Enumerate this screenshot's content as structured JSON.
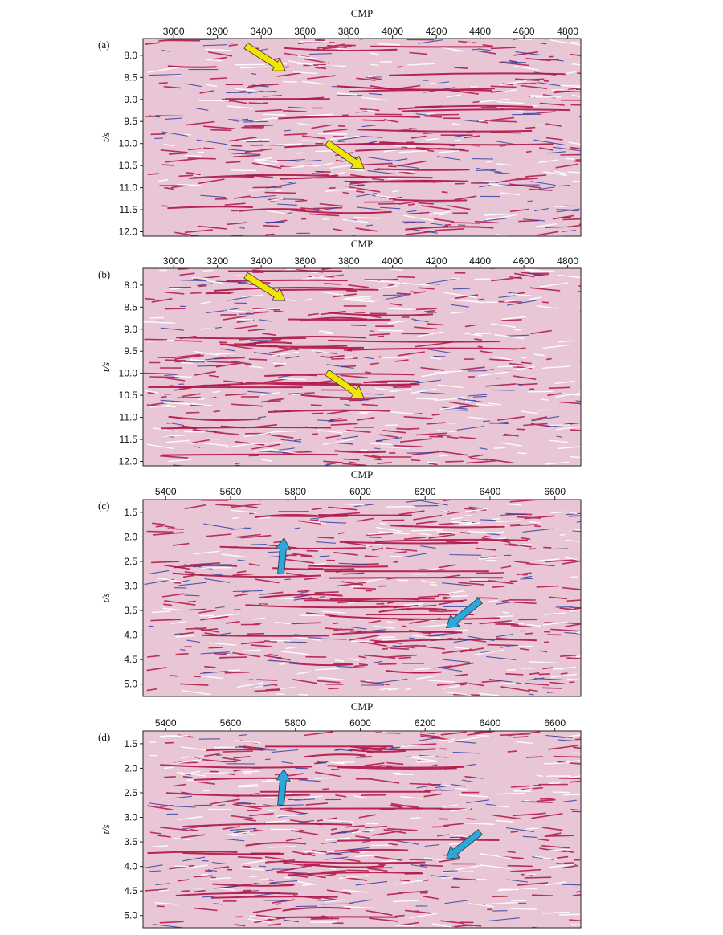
{
  "figure": {
    "panels": [
      {
        "label": "(a)",
        "xlabel": "CMP",
        "ylabel": "t/s",
        "xticks": [
          "3000",
          "3200",
          "3400",
          "3600",
          "3800",
          "4000",
          "4200",
          "4400",
          "4600",
          "4800"
        ],
        "yticks": [
          "8.0",
          "8.5",
          "9.0",
          "9.5",
          "10.0",
          "10.5",
          "11.0",
          "11.5",
          "12.0"
        ],
        "xlim": [
          2860,
          4860
        ],
        "ylim": [
          7.62,
          12.1
        ],
        "arrows": [
          {
            "color": "#f2e600",
            "tail_x": 3330,
            "tail_t": 7.78,
            "tip_x": 3510,
            "tip_t": 8.35
          },
          {
            "color": "#f2e600",
            "tail_x": 3700,
            "tail_t": 9.98,
            "tip_x": 3870,
            "tip_t": 10.57
          }
        ],
        "seed": 11
      },
      {
        "label": "(b)",
        "xlabel": "CMP",
        "ylabel": "t/s",
        "xticks": [
          "3000",
          "3200",
          "3400",
          "3600",
          "3800",
          "4000",
          "4200",
          "4400",
          "4600",
          "4800"
        ],
        "yticks": [
          "8.0",
          "8.5",
          "9.0",
          "9.5",
          "10.0",
          "10.5",
          "11.0",
          "11.5",
          "12.0"
        ],
        "xlim": [
          2860,
          4860
        ],
        "ylim": [
          7.62,
          12.1
        ],
        "arrows": [
          {
            "color": "#f2e600",
            "tail_x": 3330,
            "tail_t": 7.78,
            "tip_x": 3510,
            "tip_t": 8.35
          },
          {
            "color": "#f2e600",
            "tail_x": 3700,
            "tail_t": 9.98,
            "tip_x": 3870,
            "tip_t": 10.57
          }
        ],
        "seed": 23
      },
      {
        "label": "(c)",
        "xlabel": "CMP",
        "ylabel": "t/s",
        "xticks": [
          "5400",
          "5600",
          "5800",
          "6000",
          "6200",
          "6400",
          "6600"
        ],
        "yticks": [
          "1.5",
          "2.0",
          "2.5",
          "3.0",
          "3.5",
          "4.0",
          "4.5",
          "5.0"
        ],
        "xlim": [
          5330,
          6680
        ],
        "ylim": [
          1.24,
          5.25
        ],
        "arrows": [
          {
            "color": "#2aa8dc",
            "tail_x": 5755,
            "tail_t": 2.75,
            "tip_x": 5765,
            "tip_t": 2.02
          },
          {
            "color": "#2aa8dc",
            "tail_x": 6370,
            "tail_t": 3.3,
            "tip_x": 6265,
            "tip_t": 3.85
          }
        ],
        "seed": 37
      },
      {
        "label": "(d)",
        "xlabel": "CMP",
        "ylabel": "t/s",
        "xticks": [
          "5400",
          "5600",
          "5800",
          "6000",
          "6200",
          "6400",
          "6600"
        ],
        "yticks": [
          "1.5",
          "2.0",
          "2.5",
          "3.0",
          "3.5",
          "4.0",
          "4.5",
          "5.0"
        ],
        "xlim": [
          5330,
          6680
        ],
        "ylim": [
          1.24,
          5.25
        ],
        "arrows": [
          {
            "color": "#2aa8dc",
            "tail_x": 5755,
            "tail_t": 2.75,
            "tip_x": 5765,
            "tip_t": 2.02
          },
          {
            "color": "#2aa8dc",
            "tail_x": 6370,
            "tail_t": 3.3,
            "tip_x": 6265,
            "tip_t": 3.85
          }
        ],
        "seed": 53
      }
    ],
    "colors": {
      "positive": "#b01446",
      "negative": "#2a3a9a",
      "background": "#e8c6d6"
    }
  }
}
